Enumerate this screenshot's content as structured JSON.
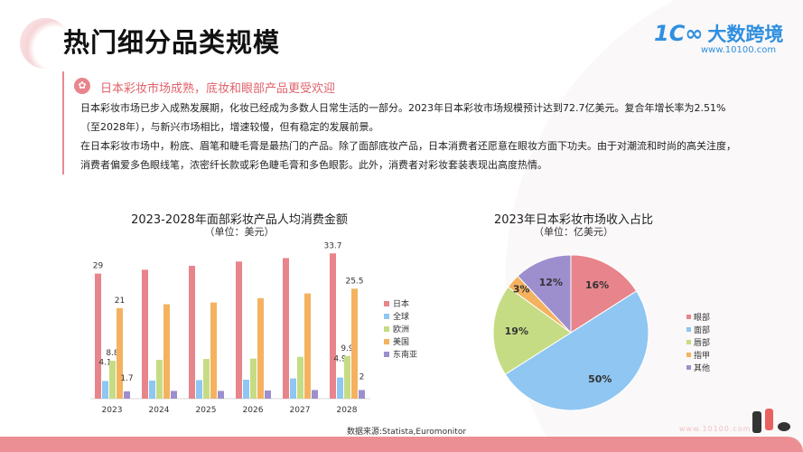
{
  "header": {
    "title": "热门细分品类规模",
    "logo_mark": "1C∞",
    "logo_name": "大数跨境",
    "logo_url": "www.10100.com"
  },
  "section": {
    "icon": "flower-icon",
    "heading": "日本彩妆市场成熟，底妆和眼部产品更受欢迎",
    "paragraphs": [
      "日本彩妆市场已步入成熟发展期，化妆已经成为多数人日常生活的一部分。2023年日本彩妆市场规模预计达到72.7亿美元。复合年增长率为2.51%（至2028年），与新兴市场相比，增速较慢，但有稳定的发展前景。",
      "在日本彩妆市场中，粉底、眉笔和睫毛膏是最热门的产品。除了面部底妆产品，日本消费者还愿意在眼妆方面下功夫。由于对潮流和时尚的高关注度，消费者偏爱多色眼线笔，浓密纤长款或彩色睫毛膏和多色眼影。此外，消费者对彩妆套装表现出高度热情。"
    ]
  },
  "source": "数据来源:Statista,Euromonitor",
  "watermark": "www.10100.com",
  "chart_data": [
    {
      "type": "bar",
      "title": "2023-2028年面部彩妆产品人均消费金额",
      "subtitle": "（单位：美元）",
      "categories": [
        "2023",
        "2024",
        "2025",
        "2026",
        "2027",
        "2028"
      ],
      "legend_position": "right",
      "grid": false,
      "series": [
        {
          "name": "日本",
          "color": "#e8848b",
          "values": [
            29,
            29.9,
            30.8,
            31.8,
            32.6,
            33.7
          ],
          "labels": [
            "29",
            "",
            "",
            "",
            "",
            "33.7"
          ]
        },
        {
          "name": "全球",
          "color": "#8fc6f2",
          "values": [
            4.1,
            4.2,
            4.3,
            4.4,
            4.7,
            4.9
          ],
          "labels": [
            "4.1",
            "",
            "",
            "",
            "",
            "4.9"
          ]
        },
        {
          "name": "欧洲",
          "color": "#c6dc84",
          "values": [
            8.8,
            9.0,
            9.2,
            9.3,
            9.7,
            9.9
          ],
          "labels": [
            "8.8",
            "",
            "",
            "",
            "",
            "9.9"
          ]
        },
        {
          "name": "美国",
          "color": "#f4b25f",
          "values": [
            21,
            21.9,
            22.3,
            23.3,
            24.4,
            25.5
          ],
          "labels": [
            "21",
            "",
            "",
            "",
            "",
            "25.5"
          ]
        },
        {
          "name": "东南亚",
          "color": "#9d8fce",
          "values": [
            1.7,
            1.8,
            1.8,
            1.9,
            2,
            2
          ],
          "labels": [
            "1.7",
            "",
            "",
            "",
            "",
            "2"
          ]
        }
      ]
    },
    {
      "type": "pie",
      "title": "2023年日本彩妆市场收入占比",
      "subtitle": "（单位：亿美元）",
      "legend_position": "right",
      "slices": [
        {
          "name": "眼部",
          "value": 16,
          "label": "16%",
          "color": "#e8848b"
        },
        {
          "name": "面部",
          "value": 50,
          "label": "50%",
          "color": "#8fc6f2"
        },
        {
          "name": "唇部",
          "value": 19,
          "label": "19%",
          "color": "#c6dc84"
        },
        {
          "name": "指甲",
          "value": 3,
          "label": "3%",
          "color": "#f4b25f"
        },
        {
          "name": "其他",
          "value": 12,
          "label": "12%",
          "color": "#9d8fce"
        }
      ]
    }
  ]
}
